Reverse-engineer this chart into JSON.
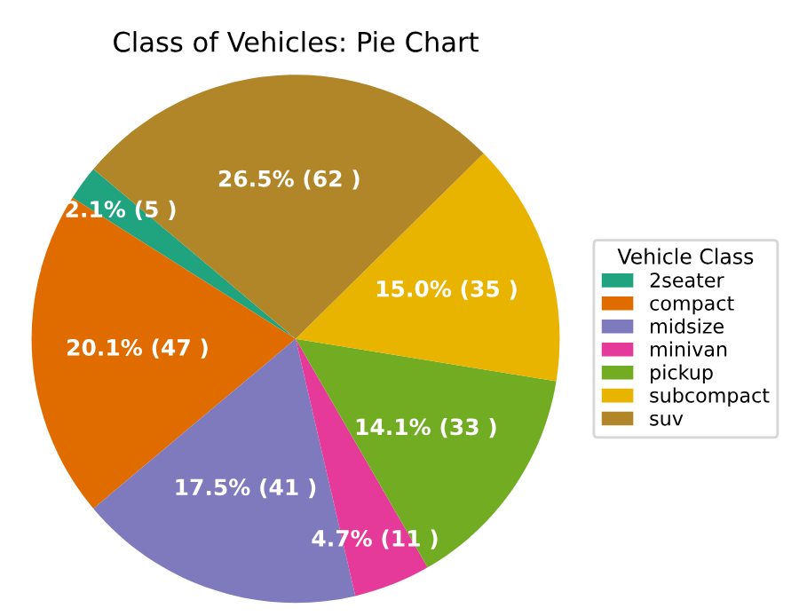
{
  "chart_data": {
    "type": "pie",
    "title": "Class of Vehicles: Pie Chart",
    "legend_title": "Vehicle Class",
    "categories": [
      "2seater",
      "compact",
      "midsize",
      "minivan",
      "pickup",
      "subcompact",
      "suv"
    ],
    "values": [
      5,
      47,
      41,
      11,
      33,
      35,
      62
    ],
    "value_labels": [
      "2.1% (5 )",
      "20.1% (47 )",
      "17.5% (41 )",
      "4.7% (11 )",
      "14.1% (33 )",
      "15.0% (35 )",
      "26.5% (62 )"
    ],
    "colors": [
      "#1fa47f",
      "#e06c00",
      "#7f79bd",
      "#e53a99",
      "#72ac22",
      "#e8b400",
      "#b08628"
    ],
    "legend": "right"
  }
}
